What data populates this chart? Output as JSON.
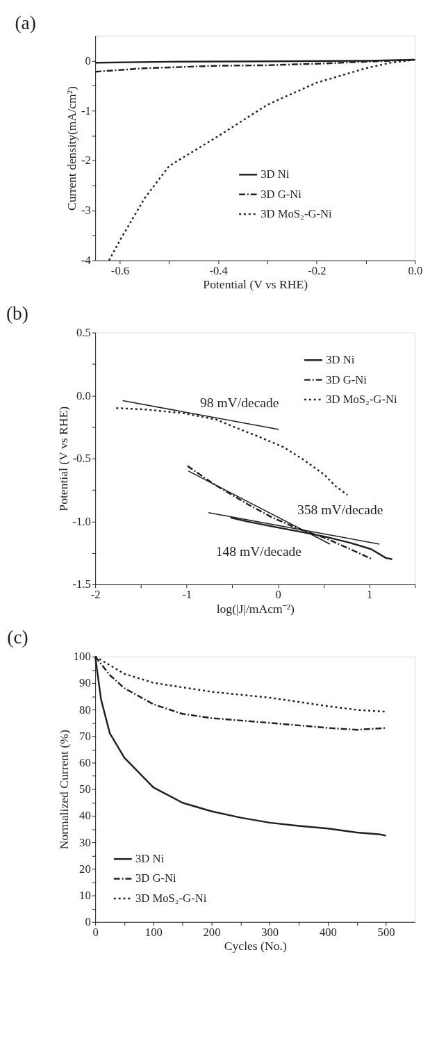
{
  "chart_data": [
    {
      "type": "line",
      "title": "(a)",
      "xlabel": "Potential (V vs RHE)",
      "ylabel": "Current density(mA/cm²)",
      "legend": "center right",
      "xlim": [
        -0.65,
        0
      ],
      "ylim": [
        -4,
        0.5
      ],
      "xticks": [
        -0.6,
        {
          "value": -0.5,
          "label": null
        },
        -0.4,
        {
          "value": -0.3,
          "label": null
        },
        -0.2,
        {
          "value": -0.1,
          "label": null
        },
        {
          "value": 0,
          "label": "0.0"
        }
      ],
      "yticks": [
        -4,
        {
          "value": -3.5,
          "label": null
        },
        -3,
        {
          "value": -2.5,
          "label": null
        },
        -2,
        {
          "value": -1.5,
          "label": null
        },
        -1,
        {
          "value": -0.5,
          "label": null
        },
        0
      ],
      "series": [
        {
          "name": "3D Ni",
          "color": "#231f20",
          "line_style": "solid",
          "x": [
            -0.65,
            -0.5,
            -0.3,
            -0.1,
            0
          ],
          "values": [
            -0.04,
            -0.02,
            -0.01,
            0,
            0.02
          ]
        },
        {
          "name": "3D G-Ni",
          "color": "#231f20",
          "line_style": "dashed",
          "x": [
            -0.65,
            -0.55,
            -0.4,
            -0.3,
            -0.2,
            -0.1,
            0
          ],
          "values": [
            -0.22,
            -0.15,
            -0.1,
            -0.09,
            -0.06,
            -0.02,
            0.02
          ]
        },
        {
          "name": "3D MoS₂-G-Ni",
          "color": "#231f20",
          "line_style": "dotted",
          "x": [
            -0.622,
            -0.6,
            -0.55,
            -0.5,
            -0.4,
            -0.3,
            -0.2,
            -0.1,
            -0.05,
            0
          ],
          "values": [
            -4,
            -3.6,
            -2.76,
            -2.11,
            -1.51,
            -0.88,
            -0.44,
            -0.15,
            -0.04,
            0.02
          ]
        }
      ]
    },
    {
      "type": "line",
      "title": "(b)",
      "xlabel": "log(|J|/mAcm⁻²)",
      "ylabel": "Potential (V vs RHE)",
      "legend": "top right",
      "xlim": [
        -2,
        1.5
      ],
      "ylim": [
        -1.5,
        0.5
      ],
      "xticks": [
        -2,
        {
          "value": -1.5,
          "label": null
        },
        -1,
        {
          "value": -0.5,
          "label": null
        },
        0,
        {
          "value": 0.5,
          "label": null
        },
        1,
        {
          "value": 1.5,
          "label": null
        }
      ],
      "yticks": [
        -1.5,
        {
          "value": -1.25,
          "label": null
        },
        {
          "value": -1,
          "label": "-1.0"
        },
        {
          "value": -0.75,
          "label": null
        },
        -0.5,
        {
          "value": -0.25,
          "label": null
        },
        {
          "value": 0,
          "label": "0.0"
        },
        {
          "value": 0.25,
          "label": null
        },
        0.5
      ],
      "series": [
        {
          "name": "3D Ni",
          "color": "#231f20",
          "line_style": "solid",
          "x": [
            -0.52,
            -0.34,
            -0.06,
            0.23,
            0.51,
            0.79,
            1.02,
            1.18,
            1.25
          ],
          "values": [
            -0.97,
            -1.0,
            -1.04,
            -1.08,
            -1.12,
            -1.17,
            -1.22,
            -1.29,
            -1.3
          ]
        },
        {
          "name": "3D G-Ni",
          "color": "#231f20",
          "line_style": "dotted",
          "x": [
            -0.99,
            -0.71,
            -0.34,
            -0.06,
            0.23,
            0.51,
            0.79,
            1.03
          ],
          "values": [
            -0.56,
            -0.7,
            -0.86,
            -0.97,
            -1.06,
            -1.13,
            -1.22,
            -1.3
          ]
        },
        {
          "name": "3D MoS₂-G-Ni",
          "color": "#231f20",
          "line_style": "dashed",
          "x": [
            -1.77,
            -1.47,
            -1.04,
            -0.68,
            -0.48,
            -0.2,
            0.06,
            0.28,
            0.51,
            0.63,
            0.76
          ],
          "values": [
            -0.1,
            -0.11,
            -0.14,
            -0.19,
            -0.25,
            -0.33,
            -0.41,
            -0.51,
            -0.63,
            -0.72,
            -0.79
          ]
        },
        {
          "color": "#231f20",
          "line_style": "solid",
          "x": [
            -1.7,
            0.01
          ],
          "values": [
            -0.04,
            -0.27
          ]
        },
        {
          "color": "#231f20",
          "line_style": "solid",
          "x": [
            -0.98,
            0.57
          ],
          "values": [
            -0.6,
            -1.18
          ]
        },
        {
          "color": "#231f20",
          "line_style": "solid",
          "x": [
            -0.76,
            1.11
          ],
          "values": [
            -0.93,
            -1.18
          ]
        }
      ],
      "annotations": [
        "98 mV/decade",
        "358 mV/decade",
        "148 mV/decade"
      ]
    },
    {
      "type": "line",
      "title": "(c)",
      "xlabel": "Cycles (No.)",
      "ylabel": "Normalized Current (%)",
      "legend": "bottom left",
      "xlim": [
        0,
        550
      ],
      "ylim": [
        0,
        100
      ],
      "xticks": [
        0,
        {
          "value": 50,
          "label": null
        },
        100,
        {
          "value": 150,
          "label": null
        },
        200,
        {
          "value": 250,
          "label": null
        },
        300,
        {
          "value": 350,
          "label": null
        },
        400,
        {
          "value": 450,
          "label": null
        },
        500
      ],
      "yticks": [
        0,
        {
          "value": 5,
          "label": null
        },
        10,
        {
          "value": 15,
          "label": null
        },
        20,
        {
          "value": 25,
          "label": null
        },
        30,
        {
          "value": 35,
          "label": null
        },
        40,
        {
          "value": 45,
          "label": null
        },
        50,
        {
          "value": 55,
          "label": null
        },
        60,
        {
          "value": 65,
          "label": null
        },
        70,
        {
          "value": 75,
          "label": null
        },
        80,
        {
          "value": 85,
          "label": null
        },
        90,
        {
          "value": 95,
          "label": null
        },
        100
      ],
      "series": [
        {
          "name": "3D Ni",
          "color": "#231f20",
          "line_style": "solid",
          "x": [
            0,
            10,
            25,
            50,
            100,
            150,
            200,
            250,
            300,
            350,
            400,
            450,
            490,
            500
          ],
          "values": [
            100,
            83.8,
            71.1,
            61.9,
            50.7,
            44.9,
            41.7,
            39.3,
            37.4,
            36.2,
            35.2,
            33.7,
            33,
            32.5
          ]
        },
        {
          "name": "3D G-Ni",
          "color": "#231f20",
          "line_style": "dashed",
          "x": [
            0,
            25,
            50,
            100,
            150,
            200,
            300,
            400,
            450,
            500
          ],
          "values": [
            100,
            93,
            88.1,
            82,
            78.4,
            76.8,
            75,
            73.1,
            72.4,
            73.1
          ]
        },
        {
          "name": "3D MoS₂-G-Ni",
          "color": "#231f20",
          "line_style": "dotted",
          "x": [
            0,
            50,
            100,
            200,
            300,
            400,
            450,
            500
          ],
          "values": [
            100,
            93.5,
            90.1,
            86.7,
            84.5,
            81.3,
            79.9,
            79.2
          ]
        }
      ]
    }
  ]
}
